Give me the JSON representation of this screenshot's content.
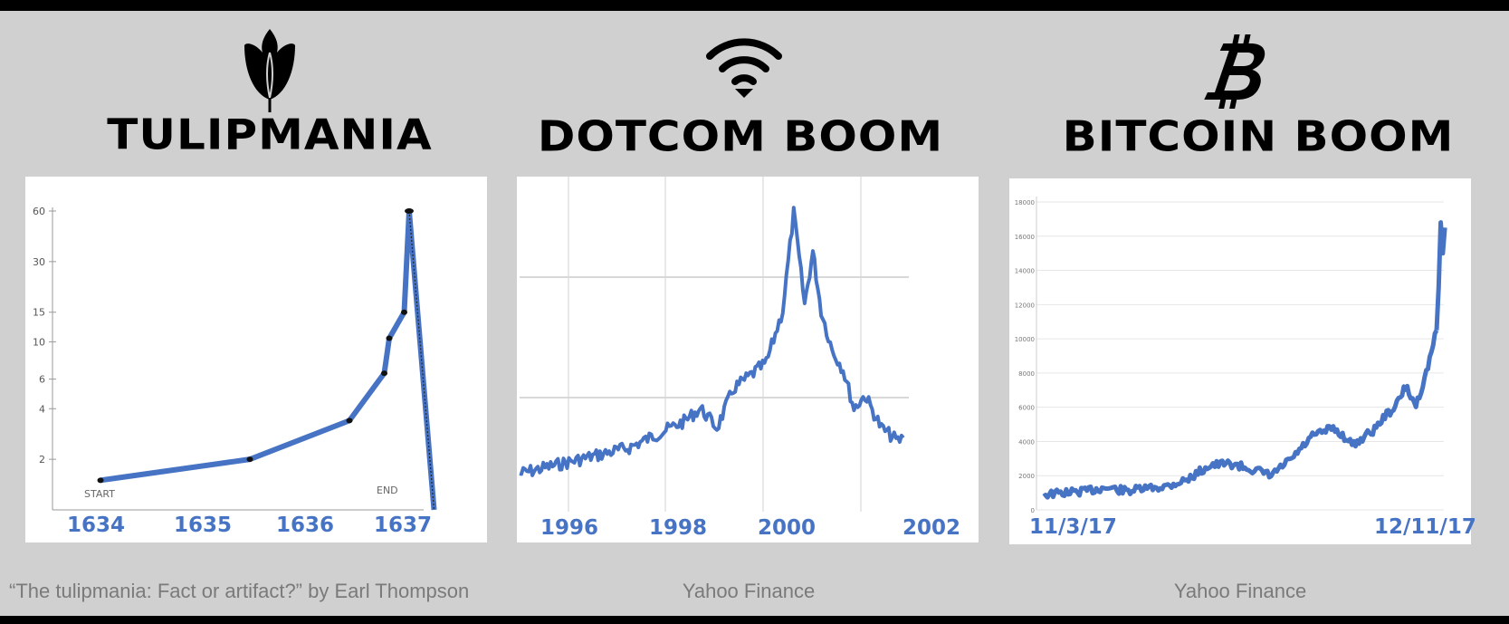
{
  "colors": {
    "line": "#4673c4",
    "background": "#d1d0d1",
    "caption": "#7a7a7a"
  },
  "panels": [
    {
      "title": "TULIPMANIA",
      "icon": "tulip-icon",
      "caption": "“The tulipmania: Fact or artifact?” by Earl Thompson"
    },
    {
      "title": "DOTCOM BOOM",
      "icon": "wifi-icon",
      "caption": "Yahoo Finance"
    },
    {
      "title": "BITCOIN BOOM",
      "icon": "bitcoin-icon",
      "caption": "Yahoo Finance"
    }
  ],
  "chart_data": [
    {
      "type": "line",
      "x_tick_labels": [
        "1634",
        "1635",
        "1636",
        "1637"
      ],
      "y_scale": "log",
      "y_ticks": [
        2,
        4,
        6,
        10,
        15,
        30,
        60
      ],
      "annotations": [
        "START",
        "END"
      ],
      "series": [
        {
          "x": [
            1634.0,
            1635.5,
            1636.5,
            1636.85,
            1636.9,
            1637.05,
            1637.1,
            1637.35
          ],
          "y": [
            1.5,
            2,
            3.4,
            6.5,
            10.5,
            15,
            60,
            1
          ]
        }
      ]
    },
    {
      "type": "line",
      "x_tick_labels": [
        "1996",
        "1998",
        "2000",
        "2002"
      ],
      "series": [
        {
          "x": [
            1995.0,
            1995.5,
            1996.0,
            1996.5,
            1997.0,
            1997.5,
            1998.0,
            1998.3,
            1998.6,
            1998.9,
            1999.2,
            1999.5,
            1999.8,
            2000.0,
            2000.2,
            2000.35,
            2000.5,
            2000.7,
            2000.9,
            2001.1,
            2001.3,
            2001.6,
            2001.9,
            2002.0
          ],
          "y": [
            20,
            22,
            24,
            26,
            28,
            32,
            36,
            40,
            34,
            46,
            50,
            54,
            70,
            100,
            72,
            88,
            70,
            58,
            52,
            40,
            44,
            34,
            30,
            31
          ]
        }
      ]
    },
    {
      "type": "line",
      "x_tick_labels": [
        "11/3/17",
        "12/11/17"
      ],
      "y_ticks": [
        0,
        2000,
        4000,
        6000,
        8000,
        10000,
        12000,
        14000,
        16000,
        18000
      ],
      "ylim": [
        0,
        18000
      ],
      "series": [
        {
          "x": [
            0,
            2,
            4,
            6,
            8,
            10,
            12,
            14,
            16,
            18,
            20,
            22,
            24,
            26,
            28,
            30,
            31,
            32,
            33,
            34,
            35,
            36,
            37,
            38
          ],
          "y": [
            900,
            1000,
            1100,
            1300,
            1100,
            1250,
            1400,
            1800,
            2600,
            2700,
            2400,
            2000,
            3000,
            4300,
            4800,
            3800,
            4300,
            4700,
            5500,
            6000,
            7200,
            6100,
            8000,
            10500
          ]
        }
      ]
    }
  ]
}
